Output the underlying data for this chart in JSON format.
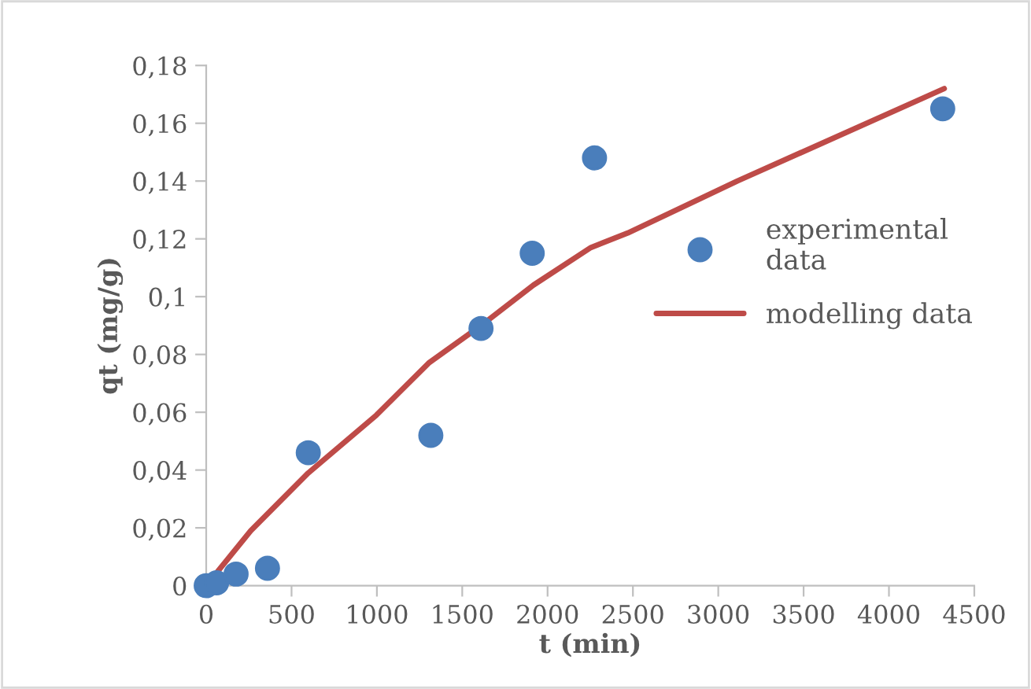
{
  "chart_data": {
    "type": "scatter",
    "xlabel": "t (min)",
    "ylabel": "qt (mg/g)",
    "xlim": [
      0,
      4500
    ],
    "xticks": [
      0,
      500,
      1000,
      1500,
      2000,
      2500,
      3000,
      3500,
      4000,
      4500
    ],
    "ylim": [
      0,
      0.18
    ],
    "yticks": [
      {
        "value": 0,
        "label": "0"
      },
      {
        "value": 0.02,
        "label": "0,02"
      },
      {
        "value": 0.04,
        "label": "0,04"
      },
      {
        "value": 0.06,
        "label": "0,06"
      },
      {
        "value": 0.08,
        "label": "0,08"
      },
      {
        "value": 0.1,
        "label": "0,1"
      },
      {
        "value": 0.12,
        "label": "0,12"
      },
      {
        "value": 0.14,
        "label": "0,14"
      },
      {
        "value": 0.16,
        "label": "0,16"
      },
      {
        "value": 0.18,
        "label": "0,18"
      }
    ],
    "grid": false,
    "legend": "right",
    "series": [
      {
        "name": "experimental data",
        "marker": "circle",
        "color": "#4a7ebb",
        "x": [
          0,
          61,
          175,
          359,
          598,
          1316,
          1610,
          1910,
          2275,
          4315
        ],
        "values": [
          0,
          0.001,
          0.004,
          0.006,
          0.046,
          0.052,
          0.089,
          0.115,
          0.148,
          0.165
        ]
      },
      {
        "name": "modelling data",
        "type": "line",
        "marker": "none",
        "line_style": "solid",
        "color": "#be4b48",
        "x": [
          0,
          261,
          598,
          997,
          1303,
          1610,
          1917,
          2254,
          2469,
          3112,
          4324
        ],
        "values": [
          0,
          0.019,
          0.039,
          0.059,
          0.077,
          0.09,
          0.104,
          0.117,
          0.122,
          0.14,
          0.172
        ]
      }
    ]
  }
}
